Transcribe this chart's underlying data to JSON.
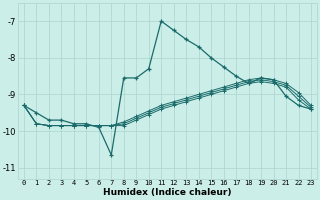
{
  "xlabel": "Humidex (Indice chaleur)",
  "background_color": "#cceee8",
  "grid_color": "#aad4ce",
  "line_color": "#1a6b6b",
  "x_ticks": [
    0,
    1,
    2,
    3,
    4,
    5,
    6,
    7,
    8,
    9,
    10,
    11,
    12,
    13,
    14,
    15,
    16,
    17,
    18,
    19,
    20,
    21,
    22,
    23
  ],
  "ylim": [
    -11.3,
    -6.5
  ],
  "xlim": [
    -0.5,
    23.5
  ],
  "yticks": [
    -11,
    -10,
    -9,
    -8,
    -7
  ],
  "line1_x": [
    0,
    1,
    2,
    3,
    4,
    5,
    6,
    7,
    8,
    9,
    10,
    11,
    12,
    13,
    14,
    15,
    16,
    17,
    18,
    19,
    20,
    21,
    22,
    23
  ],
  "line1_y": [
    -9.3,
    -9.5,
    -9.7,
    -9.7,
    -9.8,
    -9.8,
    -9.9,
    -10.65,
    -8.55,
    -8.55,
    -8.3,
    -7.0,
    -7.25,
    -7.5,
    -7.7,
    -8.0,
    -8.25,
    -8.5,
    -8.7,
    -8.55,
    -8.6,
    -9.05,
    -9.3,
    -9.4
  ],
  "line2_x": [
    0,
    1,
    2,
    3,
    4,
    5,
    6,
    7,
    8,
    9,
    10,
    11,
    12,
    13,
    14,
    15,
    16,
    17,
    18,
    19,
    20,
    21,
    22,
    23
  ],
  "line2_y": [
    -9.3,
    -9.8,
    -9.85,
    -9.85,
    -9.85,
    -9.85,
    -9.85,
    -9.85,
    -9.85,
    -9.7,
    -9.55,
    -9.4,
    -9.3,
    -9.2,
    -9.1,
    -9.0,
    -8.9,
    -8.8,
    -8.7,
    -8.65,
    -8.7,
    -8.8,
    -9.15,
    -9.4
  ],
  "line3_x": [
    0,
    1,
    2,
    3,
    4,
    5,
    6,
    7,
    8,
    9,
    10,
    11,
    12,
    13,
    14,
    15,
    16,
    17,
    18,
    19,
    20,
    21,
    22,
    23
  ],
  "line3_y": [
    -9.3,
    -9.8,
    -9.85,
    -9.85,
    -9.85,
    -9.85,
    -9.85,
    -9.85,
    -9.8,
    -9.65,
    -9.5,
    -9.35,
    -9.25,
    -9.15,
    -9.05,
    -8.95,
    -8.85,
    -8.75,
    -8.65,
    -8.6,
    -8.65,
    -8.75,
    -9.05,
    -9.35
  ],
  "line4_x": [
    0,
    1,
    2,
    3,
    4,
    5,
    6,
    7,
    8,
    9,
    10,
    11,
    12,
    13,
    14,
    15,
    16,
    17,
    18,
    19,
    20,
    21,
    22,
    23
  ],
  "line4_y": [
    -9.3,
    -9.8,
    -9.85,
    -9.85,
    -9.85,
    -9.85,
    -9.85,
    -9.85,
    -9.75,
    -9.6,
    -9.45,
    -9.3,
    -9.2,
    -9.1,
    -9.0,
    -8.9,
    -8.8,
    -8.7,
    -8.6,
    -8.55,
    -8.6,
    -8.7,
    -8.95,
    -9.3
  ]
}
